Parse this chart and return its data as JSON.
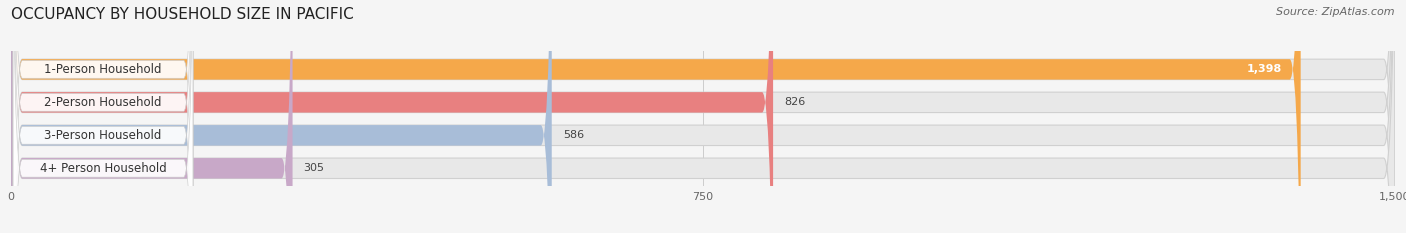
{
  "title": "OCCUPANCY BY HOUSEHOLD SIZE IN PACIFIC",
  "source": "Source: ZipAtlas.com",
  "categories": [
    "1-Person Household",
    "2-Person Household",
    "3-Person Household",
    "4+ Person Household"
  ],
  "values": [
    1398,
    826,
    586,
    305
  ],
  "bar_colors": [
    "#F5A84A",
    "#E88080",
    "#A8BDD8",
    "#C8A8C8"
  ],
  "bar_bg_color": "#e8e8e8",
  "xlim": [
    0,
    1500
  ],
  "xticks": [
    0,
    750,
    1500
  ],
  "background_color": "#f5f5f5",
  "title_fontsize": 11,
  "source_fontsize": 8,
  "label_fontsize": 8.5,
  "value_fontsize": 8
}
